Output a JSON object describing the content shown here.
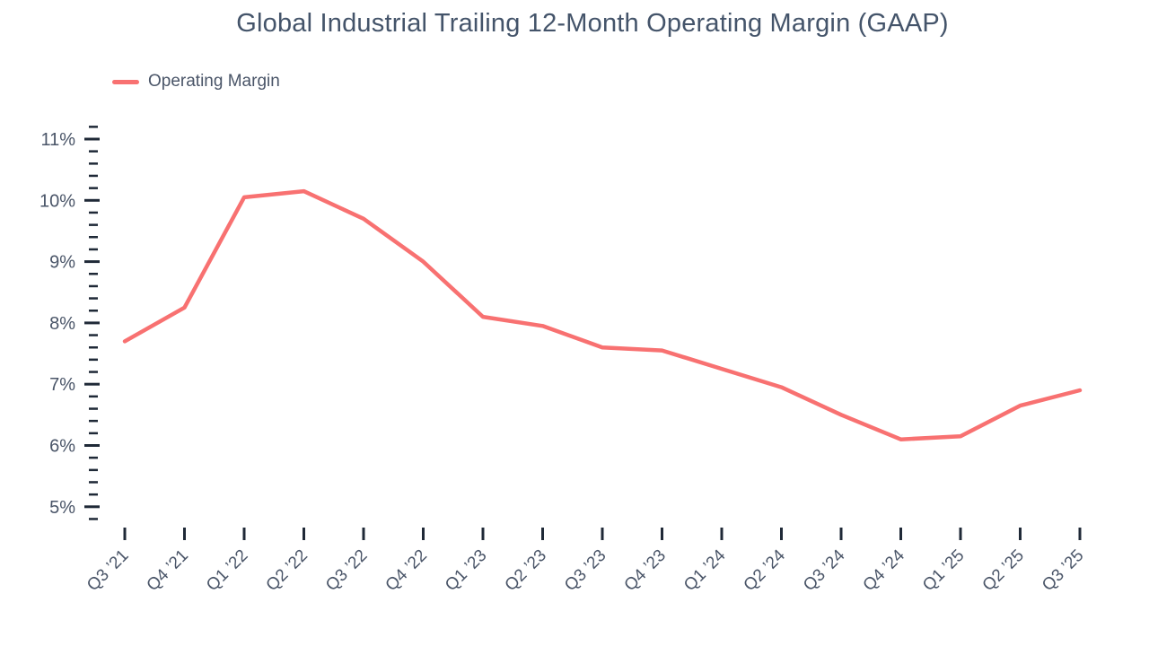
{
  "title": "Global Industrial Trailing 12-Month Operating Margin (GAAP)",
  "legend": {
    "position": "top-left",
    "items": [
      {
        "label": "Operating Margin",
        "color": "#f87171"
      }
    ]
  },
  "chart_data": {
    "type": "line",
    "title": "Global Industrial Trailing 12-Month Operating Margin (GAAP)",
    "xlabel": "",
    "ylabel": "",
    "categories": [
      "Q3 ’21",
      "Q4 ’21",
      "Q1 ’22",
      "Q2 ’22",
      "Q3 ’22",
      "Q4 ’22",
      "Q1 ’23",
      "Q2 ’23",
      "Q3 ’23",
      "Q4 ’23",
      "Q1 ’24",
      "Q2 ’24",
      "Q3 ’24",
      "Q4 ’24",
      "Q1 ’25",
      "Q2 ’25",
      "Q3 ’25"
    ],
    "series": [
      {
        "name": "Operating Margin",
        "color": "#f87171",
        "values": [
          7.7,
          8.25,
          10.05,
          10.15,
          9.7,
          9.0,
          8.1,
          7.95,
          7.6,
          7.55,
          7.25,
          6.95,
          6.5,
          6.1,
          6.15,
          6.65,
          6.9
        ]
      }
    ],
    "y_axis": {
      "unit": "%",
      "min": 4.8,
      "max": 11.2,
      "major_step": 1,
      "minor_step": 0.2,
      "tick_labels": [
        "5%",
        "6%",
        "7%",
        "8%",
        "9%",
        "10%",
        "11%"
      ]
    },
    "grid": false,
    "legend_position": "top-left"
  },
  "colors": {
    "accent": "#f87171",
    "text": "#4a5568",
    "title_text": "#44546a",
    "tick": "#1f2937",
    "background": "#ffffff"
  }
}
